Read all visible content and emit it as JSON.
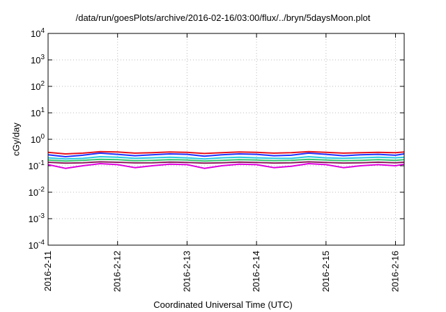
{
  "chart_data": {
    "type": "line",
    "title": "/data/run/goesPlots/archive/2016-02-16/03:00/flux/../bryn/5daysMoon.plot",
    "xlabel": "Coordinated Universal Time (UTC)",
    "ylabel": "cGy/day",
    "x_ticks": [
      "2016-2-11",
      "2016-2-12",
      "2016-2-13",
      "2016-2-14",
      "2016-2-15",
      "2016-2-16"
    ],
    "xlim": [
      "2016-02-11T00:00",
      "2016-02-16T03:00"
    ],
    "y_scale": "log",
    "ylim": [
      0.0001,
      10000
    ],
    "y_ticks": [
      {
        "base": "10",
        "exp": "-4"
      },
      {
        "base": "10",
        "exp": "-3"
      },
      {
        "base": "10",
        "exp": "-2"
      },
      {
        "base": "10",
        "exp": "-1"
      },
      {
        "base": "10",
        "exp": "0"
      },
      {
        "base": "10",
        "exp": "1"
      },
      {
        "base": "10",
        "exp": "2"
      },
      {
        "base": "10",
        "exp": "3"
      },
      {
        "base": "10",
        "exp": "4"
      }
    ],
    "grid": true,
    "x": [
      "2016-02-11T00:00",
      "2016-02-11T06:00",
      "2016-02-11T12:00",
      "2016-02-11T18:00",
      "2016-02-12T00:00",
      "2016-02-12T06:00",
      "2016-02-12T12:00",
      "2016-02-12T18:00",
      "2016-02-13T00:00",
      "2016-02-13T06:00",
      "2016-02-13T12:00",
      "2016-02-13T18:00",
      "2016-02-14T00:00",
      "2016-02-14T06:00",
      "2016-02-14T12:00",
      "2016-02-14T18:00",
      "2016-02-15T00:00",
      "2016-02-15T06:00",
      "2016-02-15T12:00",
      "2016-02-15T18:00",
      "2016-02-16T00:00",
      "2016-02-16T03:00"
    ],
    "series": [
      {
        "color": "#e8101a",
        "values": [
          0.32,
          0.28,
          0.3,
          0.34,
          0.33,
          0.3,
          0.31,
          0.33,
          0.32,
          0.29,
          0.31,
          0.33,
          0.32,
          0.3,
          0.31,
          0.34,
          0.32,
          0.3,
          0.31,
          0.32,
          0.31,
          0.33
        ]
      },
      {
        "color": "#2030ff",
        "values": [
          0.26,
          0.22,
          0.25,
          0.3,
          0.27,
          0.24,
          0.26,
          0.28,
          0.27,
          0.23,
          0.26,
          0.28,
          0.27,
          0.24,
          0.25,
          0.3,
          0.27,
          0.24,
          0.26,
          0.27,
          0.25,
          0.28
        ]
      },
      {
        "color": "#28c8e0",
        "values": [
          0.2,
          0.18,
          0.19,
          0.22,
          0.21,
          0.19,
          0.2,
          0.21,
          0.2,
          0.18,
          0.2,
          0.21,
          0.2,
          0.19,
          0.19,
          0.22,
          0.2,
          0.19,
          0.2,
          0.21,
          0.2,
          0.21
        ]
      },
      {
        "color": "#30c870",
        "values": [
          0.165,
          0.15,
          0.16,
          0.175,
          0.17,
          0.155,
          0.16,
          0.17,
          0.165,
          0.15,
          0.16,
          0.17,
          0.165,
          0.155,
          0.16,
          0.175,
          0.165,
          0.155,
          0.16,
          0.17,
          0.16,
          0.17
        ]
      },
      {
        "color": "#8c1a5a",
        "values": [
          0.135,
          0.125,
          0.13,
          0.14,
          0.135,
          0.128,
          0.13,
          0.138,
          0.134,
          0.125,
          0.13,
          0.137,
          0.134,
          0.127,
          0.13,
          0.14,
          0.134,
          0.127,
          0.13,
          0.136,
          0.13,
          0.136
        ]
      },
      {
        "color": "#e000e0",
        "values": [
          0.11,
          0.08,
          0.1,
          0.12,
          0.11,
          0.085,
          0.1,
          0.115,
          0.11,
          0.08,
          0.1,
          0.115,
          0.11,
          0.085,
          0.095,
          0.12,
          0.11,
          0.085,
          0.1,
          0.11,
          0.1,
          0.115
        ]
      }
    ]
  }
}
